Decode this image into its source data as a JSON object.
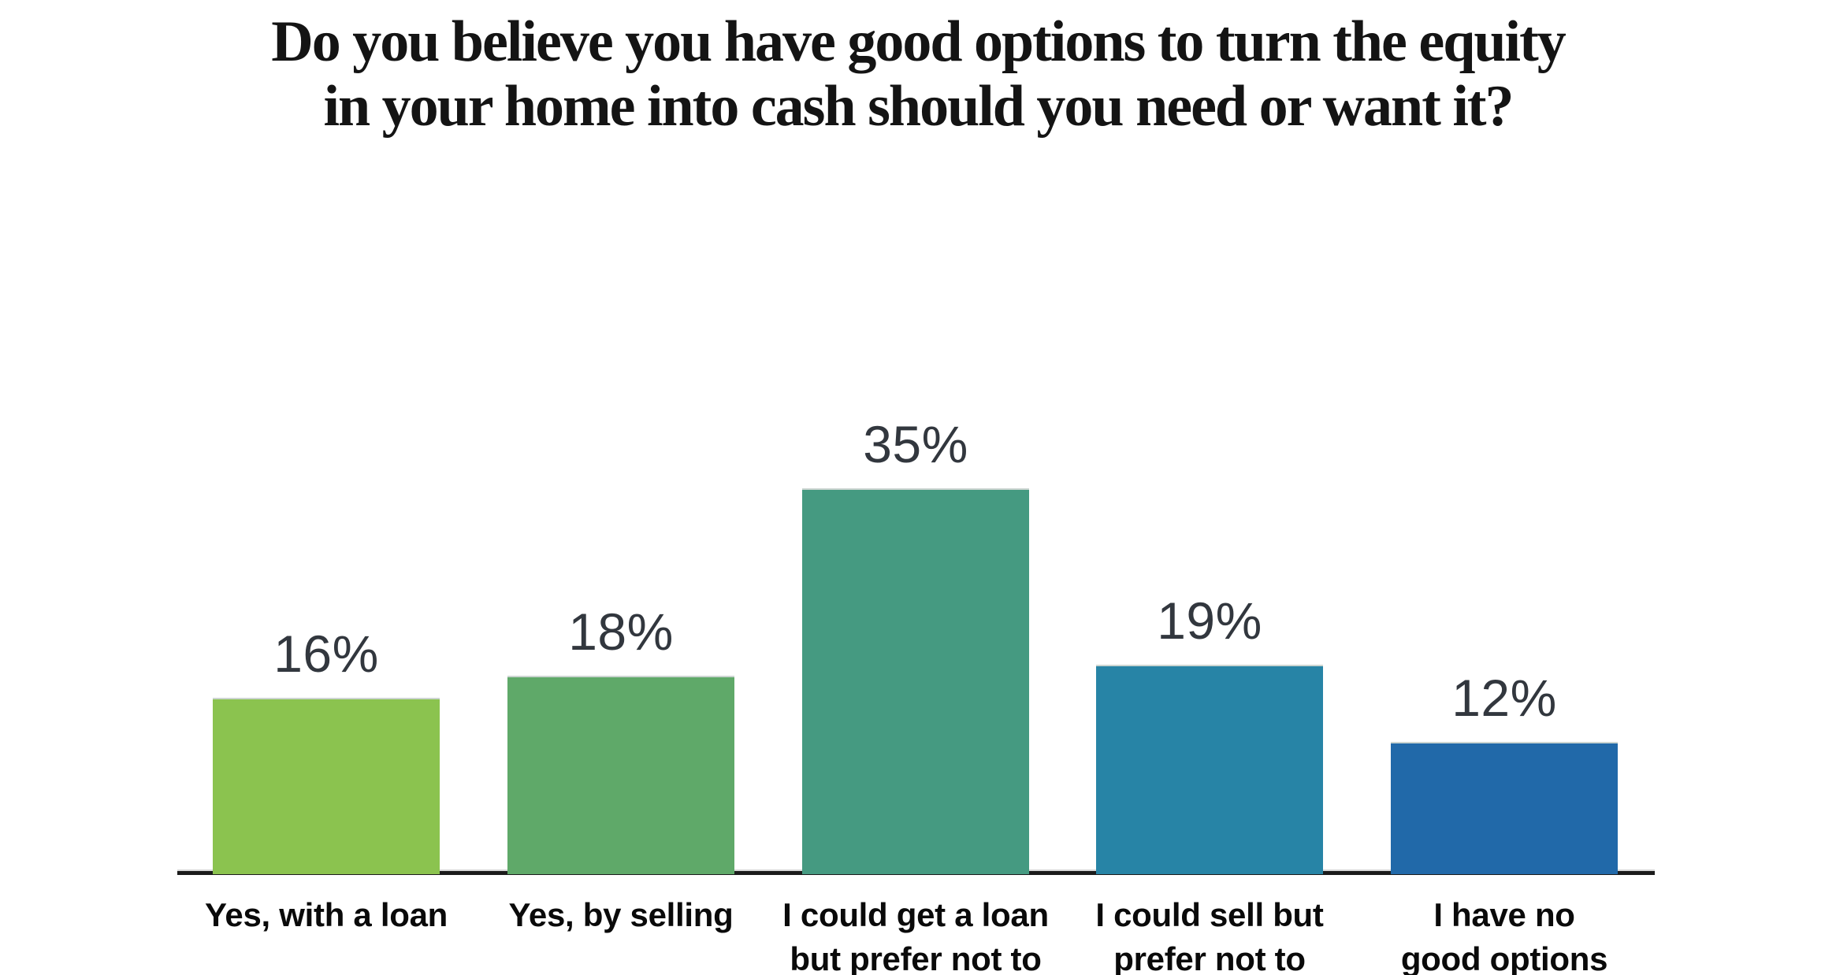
{
  "chart_data": {
    "type": "bar",
    "title": "Do you believe you have good options to turn the equity in your home into cash should you need or want it?",
    "title_lines": [
      "Do you believe you have good options to turn the equity",
      "in your home into cash should you need or want it?"
    ],
    "categories": [
      "Yes, with a loan",
      "Yes, by selling",
      "I could get a loan but prefer not to",
      "I could sell but prefer not to",
      "I have no good options"
    ],
    "category_label_lines": [
      [
        "Yes, with a loan"
      ],
      [
        "Yes, by selling"
      ],
      [
        "I could get a loan",
        "but prefer not to"
      ],
      [
        "I could sell but",
        "prefer not to"
      ],
      [
        "I have no",
        "good options"
      ]
    ],
    "values": [
      16,
      18,
      35,
      19,
      12
    ],
    "value_labels": [
      "16%",
      "18%",
      "35%",
      "19%",
      "12%"
    ],
    "bar_colors": [
      "#8BC34F",
      "#5FA969",
      "#459A81",
      "#2784A6",
      "#2169A9"
    ],
    "xlabel": "",
    "ylabel": "",
    "ylim": [
      0,
      40
    ],
    "grid": false,
    "legend": false,
    "colors": {
      "title": "#141414",
      "value_label": "#32373E",
      "category_label": "#0A0A0A",
      "axis_line": "#1B1B1B",
      "background": "#FFFFFF"
    }
  }
}
